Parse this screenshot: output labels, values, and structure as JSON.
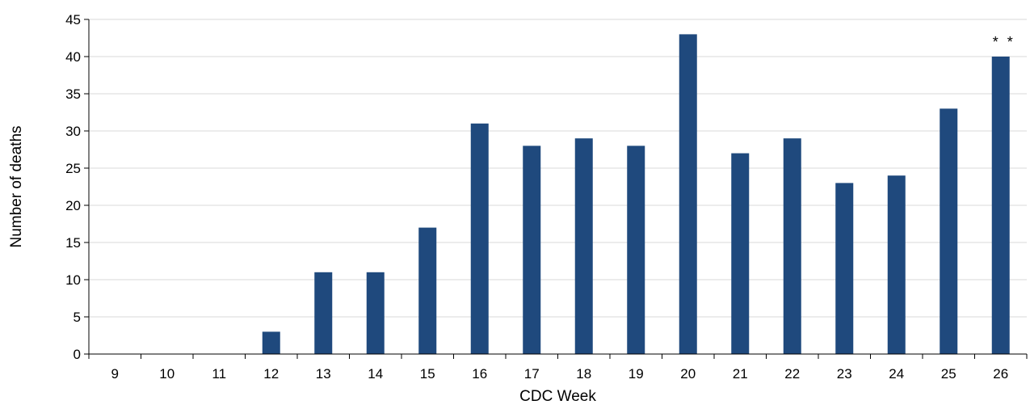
{
  "chart_data": {
    "type": "bar",
    "title": "",
    "xlabel": "CDC Week",
    "ylabel": "Number of deaths",
    "categories": [
      "9",
      "10",
      "11",
      "12",
      "13",
      "14",
      "15",
      "16",
      "17",
      "18",
      "19",
      "20",
      "21",
      "22",
      "23",
      "24",
      "25",
      "26"
    ],
    "values": [
      0,
      0,
      0,
      3,
      11,
      11,
      17,
      31,
      28,
      29,
      28,
      43,
      27,
      29,
      23,
      24,
      33,
      40
    ],
    "ylim": [
      0,
      45
    ],
    "yticks": [
      0,
      5,
      10,
      15,
      20,
      25,
      30,
      35,
      40,
      45
    ],
    "grid": true,
    "legend": "none",
    "bar_color": "#1F497D",
    "grid_color": "#D9D9D9",
    "annotations": [
      {
        "category": "26",
        "text": "* *"
      }
    ]
  }
}
